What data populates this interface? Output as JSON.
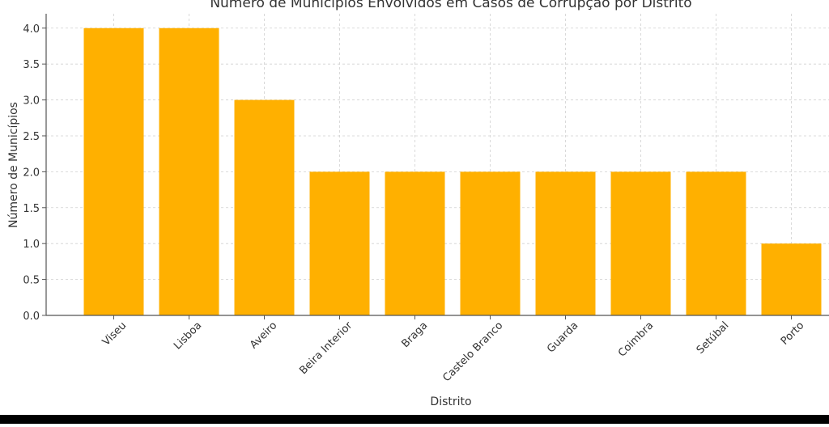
{
  "chart_data": {
    "type": "bar",
    "title": "Número de Municípios Envolvidos em Casos de Corrupção por Distrito",
    "xlabel": "Distrito",
    "ylabel": "Número de Municípios",
    "categories": [
      "Viseu",
      "Lisboa",
      "Aveiro",
      "Beira Interior",
      "Braga",
      "Castelo Branco",
      "Guarda",
      "Coimbra",
      "Setúbal",
      "Porto"
    ],
    "values": [
      4,
      4,
      3,
      2,
      2,
      2,
      2,
      2,
      2,
      1
    ],
    "ylim": [
      0,
      4.2
    ],
    "yticks": [
      "0.0",
      "0.5",
      "1.0",
      "1.5",
      "2.0",
      "2.5",
      "3.0",
      "3.5",
      "4.0"
    ],
    "grid": true,
    "bar_color": "#FFB000"
  }
}
